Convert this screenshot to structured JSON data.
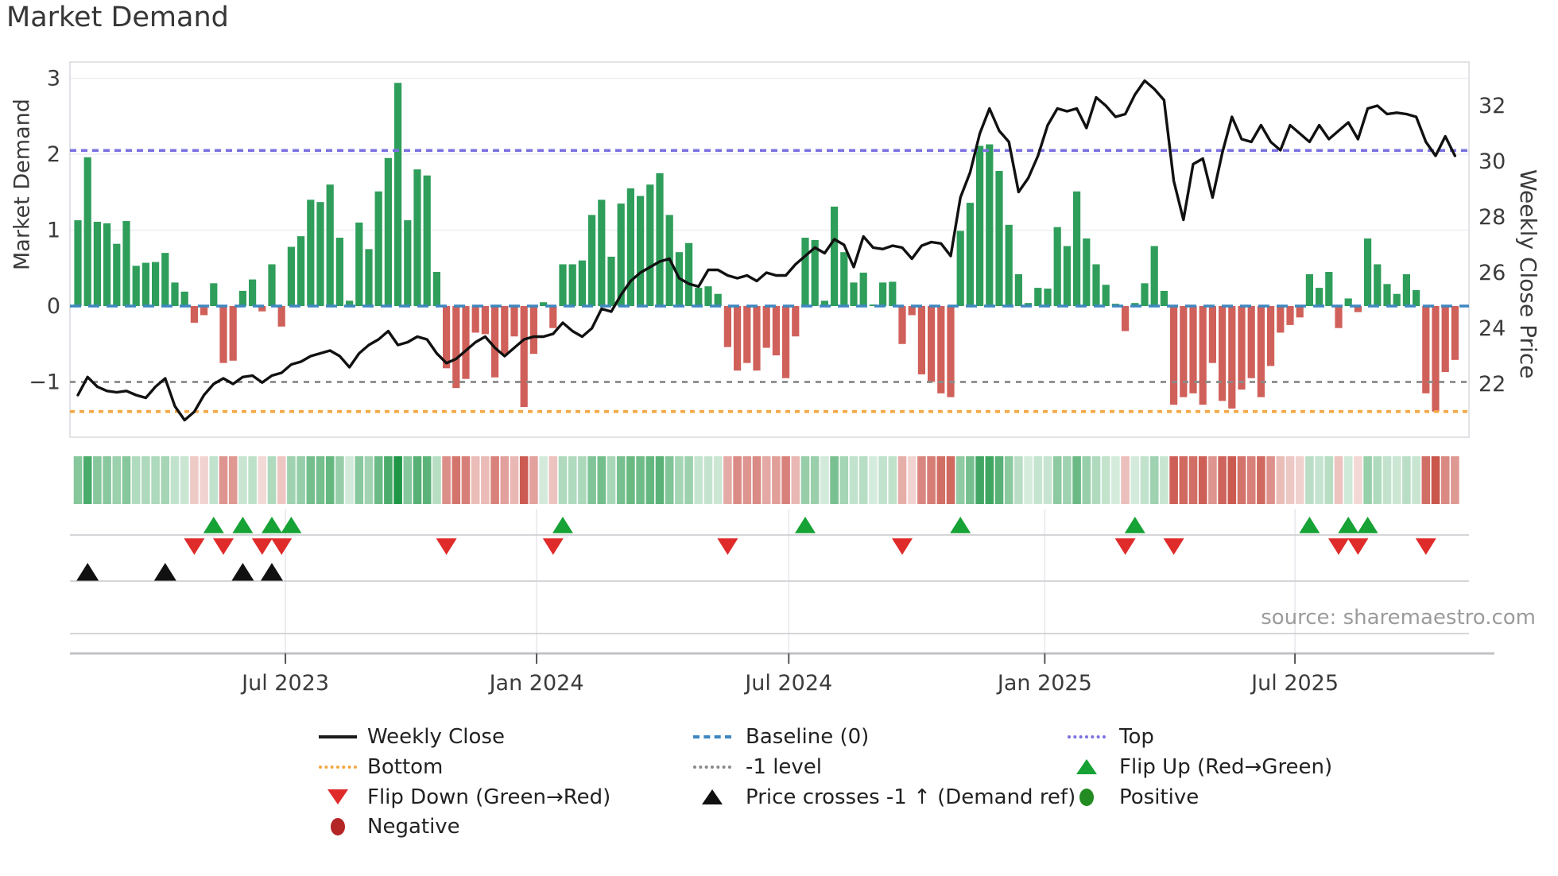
{
  "title": "Market Demand",
  "source": "source: sharemaestro.com",
  "axes": {
    "left_label": "Market Demand",
    "right_label": "Weekly Close Price",
    "demand_ticks": [
      {
        "value": 3,
        "label": "3"
      },
      {
        "value": 2,
        "label": "2"
      },
      {
        "value": 1,
        "label": "1"
      },
      {
        "value": 0,
        "label": "0"
      },
      {
        "value": -1,
        "label": "−1"
      }
    ],
    "price_ticks": [
      {
        "value": 32,
        "label": "32"
      },
      {
        "value": 30,
        "label": "30"
      },
      {
        "value": 28,
        "label": "28"
      },
      {
        "value": 26,
        "label": "26"
      },
      {
        "value": 24,
        "label": "24"
      },
      {
        "value": 22,
        "label": "22"
      }
    ],
    "date_ticks": [
      {
        "week": 21.4,
        "label": "Jul 2023"
      },
      {
        "week": 47.3,
        "label": "Jan 2024"
      },
      {
        "week": 73.3,
        "label": "Jul 2024"
      },
      {
        "week": 99.7,
        "label": "Jan 2025"
      },
      {
        "week": 125.5,
        "label": "Jul 2025"
      }
    ]
  },
  "colors": {
    "bar_positive": "#2f9e5b",
    "bar_negative": "#d0605a",
    "price_line": "#111111",
    "baseline": "#3e87c0",
    "top_line": "#7a70e0",
    "minus_one_line": "#8a8a8a",
    "bottom_line": "#f5a742",
    "flip_up_marker": "#16a234",
    "flip_down_marker": "#e02b2b",
    "price_cross_marker": "#111111",
    "heat_green": [
      30,
      150,
      70
    ],
    "heat_red": [
      200,
      80,
      70
    ],
    "grid": "#edeff3",
    "spine": "#d8dade"
  },
  "chart_data": {
    "type": "bar+line",
    "x_unit": "week",
    "n_weeks": 143,
    "x_range_labels": [
      "Jul 2023",
      "Jan 2024",
      "Jul 2024",
      "Jan 2025",
      "Jul 2025"
    ],
    "demand_ylim": [
      -1.75,
      3.2
    ],
    "price_ylim": [
      20.1,
      33.5
    ],
    "legend_position": "bottom",
    "grid": "partial",
    "reference_lines": {
      "top": 2.05,
      "baseline": 0,
      "minus_one": -1,
      "bottom": -1.39
    },
    "series": [
      {
        "name": "Market Demand",
        "type": "bar",
        "axis": "left",
        "values": [
          1.13,
          1.96,
          1.11,
          1.09,
          0.82,
          1.12,
          0.53,
          0.57,
          0.58,
          0.7,
          0.31,
          0.19,
          -0.22,
          -0.12,
          0.3,
          -0.75,
          -0.72,
          0.2,
          0.35,
          -0.07,
          0.55,
          -0.27,
          0.78,
          0.92,
          1.4,
          1.37,
          1.6,
          0.9,
          0.07,
          1.1,
          0.75,
          1.51,
          1.95,
          2.94,
          1.13,
          1.8,
          1.72,
          0.45,
          -0.82,
          -1.08,
          -0.96,
          -0.35,
          -0.37,
          -0.94,
          -0.63,
          -0.4,
          -1.33,
          -0.63,
          0.05,
          -0.29,
          0.55,
          0.55,
          0.6,
          1.2,
          1.4,
          0.65,
          1.35,
          1.55,
          1.45,
          1.6,
          1.75,
          1.2,
          0.71,
          0.83,
          0.24,
          0.26,
          0.16,
          -0.54,
          -0.85,
          -0.75,
          -0.85,
          -0.55,
          -0.65,
          -0.95,
          -0.4,
          0.9,
          0.87,
          0.07,
          1.31,
          0.71,
          0.31,
          0.44,
          0.02,
          0.31,
          0.32,
          -0.5,
          -0.12,
          -0.9,
          -1.0,
          -1.15,
          -1.2,
          0.99,
          1.36,
          2.11,
          2.13,
          1.78,
          1.07,
          0.42,
          0.04,
          0.24,
          0.23,
          1.04,
          0.79,
          1.51,
          0.89,
          0.55,
          0.28,
          0.03,
          -0.33,
          0.04,
          0.3,
          0.79,
          0.2,
          -1.3,
          -1.2,
          -1.15,
          -1.3,
          -0.75,
          -1.25,
          -1.35,
          -1.1,
          -0.95,
          -1.2,
          -0.79,
          -0.35,
          -0.25,
          -0.15,
          0.42,
          0.24,
          0.45,
          -0.29,
          0.1,
          -0.08,
          0.89,
          0.55,
          0.29,
          0.16,
          0.42,
          0.21,
          -1.15,
          -1.39,
          -0.87,
          -0.71
        ]
      },
      {
        "name": "Weekly Close",
        "type": "line",
        "axis": "right",
        "values": [
          21.6,
          22.25,
          21.9,
          21.75,
          21.7,
          21.75,
          21.6,
          21.5,
          21.9,
          22.2,
          21.2,
          20.7,
          21.0,
          21.6,
          22.0,
          22.2,
          22.0,
          22.25,
          22.3,
          22.05,
          22.3,
          22.4,
          22.7,
          22.8,
          23.0,
          23.1,
          23.2,
          23.0,
          22.6,
          23.1,
          23.4,
          23.6,
          23.9,
          23.4,
          23.5,
          23.7,
          23.6,
          23.1,
          22.75,
          22.9,
          23.2,
          23.5,
          23.7,
          23.3,
          23.0,
          23.3,
          23.6,
          23.7,
          23.7,
          23.8,
          24.2,
          23.9,
          23.7,
          24.0,
          24.7,
          24.6,
          25.2,
          25.7,
          26.0,
          26.2,
          26.4,
          26.5,
          25.8,
          25.6,
          25.5,
          26.1,
          26.1,
          25.9,
          25.8,
          25.9,
          25.7,
          26.0,
          25.9,
          25.9,
          26.3,
          26.6,
          26.9,
          26.7,
          27.2,
          27.0,
          26.2,
          27.3,
          26.9,
          26.85,
          26.97,
          26.9,
          26.5,
          26.97,
          27.1,
          27.05,
          26.6,
          28.7,
          29.6,
          31.0,
          31.9,
          31.1,
          30.7,
          28.9,
          29.4,
          30.2,
          31.3,
          31.9,
          31.8,
          31.9,
          31.2,
          32.3,
          32.0,
          31.6,
          31.7,
          32.4,
          32.9,
          32.6,
          32.2,
          29.3,
          27.9,
          29.9,
          30.1,
          28.7,
          30.3,
          31.6,
          30.8,
          30.7,
          31.3,
          30.7,
          30.4,
          31.3,
          31.0,
          30.7,
          31.3,
          30.8,
          31.1,
          31.4,
          30.8,
          31.9,
          32.0,
          31.7,
          31.75,
          31.7,
          31.6,
          30.7,
          30.2,
          30.9,
          30.2
        ]
      }
    ],
    "heatmap_from": "demand",
    "markers": {
      "flip_up_weeks": [
        14,
        17,
        20,
        22,
        50,
        75,
        91,
        109,
        127,
        131,
        133
      ],
      "flip_down_weeks": [
        12,
        15,
        19,
        21,
        38,
        49,
        67,
        85,
        108,
        113,
        130,
        132,
        139
      ],
      "price_cross_up_weeks": [
        1,
        9,
        17,
        20
      ]
    }
  },
  "legend": {
    "items": [
      {
        "type": "line",
        "color": "#1a1a1a",
        "label": "Weekly Close"
      },
      {
        "type": "dotted",
        "color": "#f5a742",
        "label": "Bottom"
      },
      {
        "type": "tri-down",
        "color": "#e02b2b",
        "label": "Flip Down (Green→Red)"
      },
      {
        "type": "circle",
        "color": "#b42525",
        "label": "Negative"
      },
      {
        "type": "dashed",
        "color": "#3e87c0",
        "label": "Baseline (0)"
      },
      {
        "type": "dotted",
        "color": "#8a8a8a",
        "label": "-1 level"
      },
      {
        "type": "tri-up",
        "color": "#111111",
        "label": "Price crosses -1 ↑ (Demand ref)"
      },
      {
        "type": "dotted",
        "color": "#7a70e0",
        "label": "Top"
      },
      {
        "type": "tri-up",
        "color": "#16a234",
        "label": "Flip Up (Red→Green)"
      },
      {
        "type": "circle",
        "color": "#228b22",
        "label": "Positive"
      }
    ]
  }
}
